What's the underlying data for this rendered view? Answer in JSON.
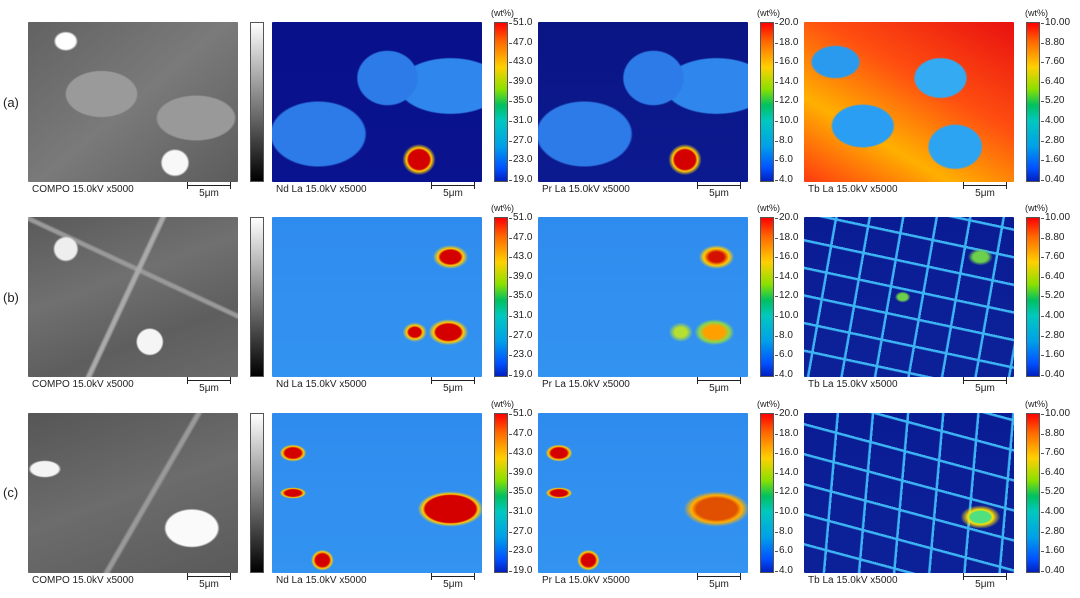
{
  "rows": [
    {
      "label": "(a)"
    },
    {
      "label": "(b)"
    },
    {
      "label": "(c)"
    }
  ],
  "captions": {
    "compo": "COMPO 15.0kV x5000",
    "nd": "Nd La 15.0kV x5000",
    "pr": "Pr La 15.0kV x5000",
    "tb": "Tb La 15.0kV x5000"
  },
  "scale_bar": "5μm",
  "unit": "(wt%)",
  "nd_ticks": [
    "51.0",
    "47.0",
    "43.0",
    "39.0",
    "35.0",
    "31.0",
    "27.0",
    "23.0",
    "19.0"
  ],
  "pr_ticks": [
    "20.0",
    "18.0",
    "16.0",
    "14.0",
    "12.0",
    "10.0",
    "8.0",
    "6.0",
    "4.0"
  ],
  "tb_ticks": [
    "10.00",
    "8.80",
    "7.60",
    "6.40",
    "5.20",
    "4.00",
    "2.80",
    "1.60",
    "0.40"
  ],
  "colors": {
    "grey_bar": "#808080",
    "accent_red": "#e00000",
    "accent_blue": "#2f8cef"
  }
}
